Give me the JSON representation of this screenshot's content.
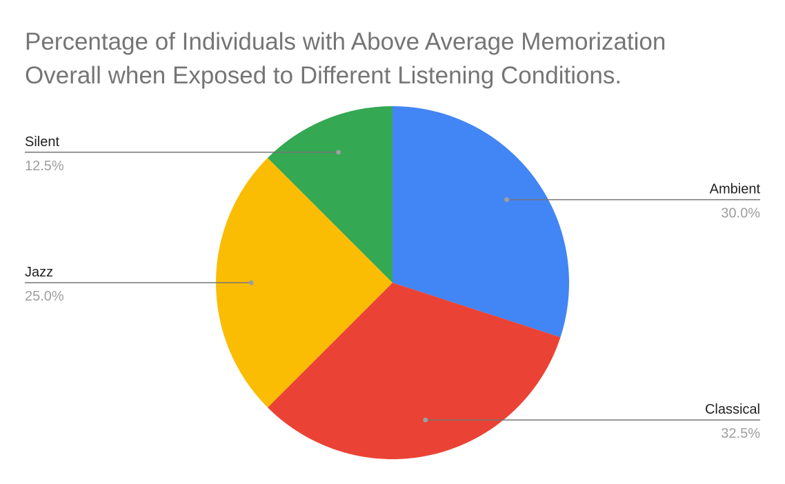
{
  "chart_data": {
    "type": "pie",
    "title_lines": [
      "Percentage of Individuals with Above Average Memorization",
      "Overall when Exposed to Different Listening Conditions."
    ],
    "slices": [
      {
        "name": "Ambient",
        "value": 30.0,
        "label": "30.0%",
        "color": "#4285f4"
      },
      {
        "name": "Classical",
        "value": 32.5,
        "label": "32.5%",
        "color": "#ea4335"
      },
      {
        "name": "Jazz",
        "value": 25.0,
        "label": "25.0%",
        "color": "#fbbc04"
      },
      {
        "name": "Silent",
        "value": 12.5,
        "label": "12.5%",
        "color": "#34a853"
      }
    ],
    "start": "top",
    "direction": "clockwise",
    "legend": "none",
    "data_labels": "outside-with-leader-lines"
  }
}
